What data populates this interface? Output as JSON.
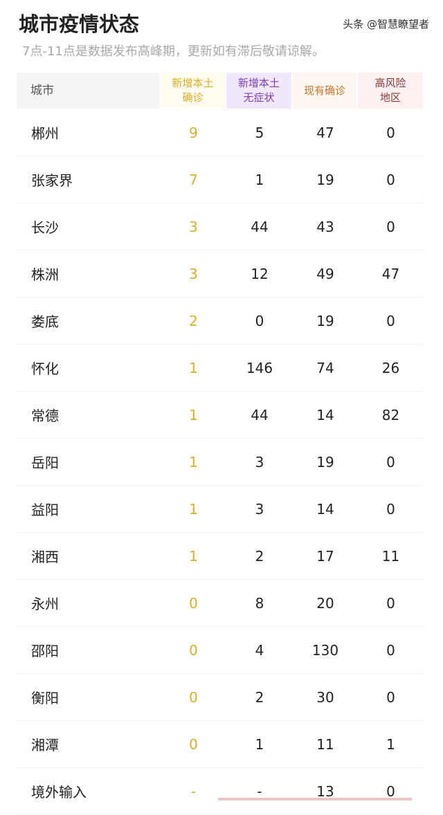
{
  "title": "城市疫情状态",
  "subtitle": "7点-11点是数据发布高峰期，更新如有滞后敬请谅解。",
  "columns": {
    "city": "城市",
    "new_local_confirmed": "新增本土\n确诊",
    "new_local_asymptomatic": "新增本土\n无症状",
    "current_confirmed": "现有确诊",
    "high_risk_areas": "高风险\n地区"
  },
  "colors": {
    "new_local_confirmed": "#d9ae2a",
    "new_local_asymptomatic": "#7a3db5",
    "current_confirmed": "#c8742e",
    "high_risk_areas": "#8a3a3a"
  },
  "rows": [
    {
      "city": "郴州",
      "a": "9",
      "b": "5",
      "c": "47",
      "d": "0"
    },
    {
      "city": "张家界",
      "a": "7",
      "b": "1",
      "c": "19",
      "d": "0"
    },
    {
      "city": "长沙",
      "a": "3",
      "b": "44",
      "c": "43",
      "d": "0"
    },
    {
      "city": "株洲",
      "a": "3",
      "b": "12",
      "c": "49",
      "d": "47"
    },
    {
      "city": "娄底",
      "a": "2",
      "b": "0",
      "c": "19",
      "d": "0"
    },
    {
      "city": "怀化",
      "a": "1",
      "b": "146",
      "c": "74",
      "d": "26"
    },
    {
      "city": "常德",
      "a": "1",
      "b": "44",
      "c": "14",
      "d": "82"
    },
    {
      "city": "岳阳",
      "a": "1",
      "b": "3",
      "c": "19",
      "d": "0"
    },
    {
      "city": "益阳",
      "a": "1",
      "b": "3",
      "c": "14",
      "d": "0"
    },
    {
      "city": "湘西",
      "a": "1",
      "b": "2",
      "c": "17",
      "d": "11"
    },
    {
      "city": "永州",
      "a": "0",
      "b": "8",
      "c": "20",
      "d": "0"
    },
    {
      "city": "邵阳",
      "a": "0",
      "b": "4",
      "c": "130",
      "d": "0"
    },
    {
      "city": "衡阳",
      "a": "0",
      "b": "2",
      "c": "30",
      "d": "0"
    },
    {
      "city": "湘潭",
      "a": "0",
      "b": "1",
      "c": "11",
      "d": "1"
    },
    {
      "city": "境外输入",
      "a": "-",
      "b": "-",
      "c": "13",
      "d": "0"
    }
  ],
  "watermark": "头条 @智慧瞭望者"
}
